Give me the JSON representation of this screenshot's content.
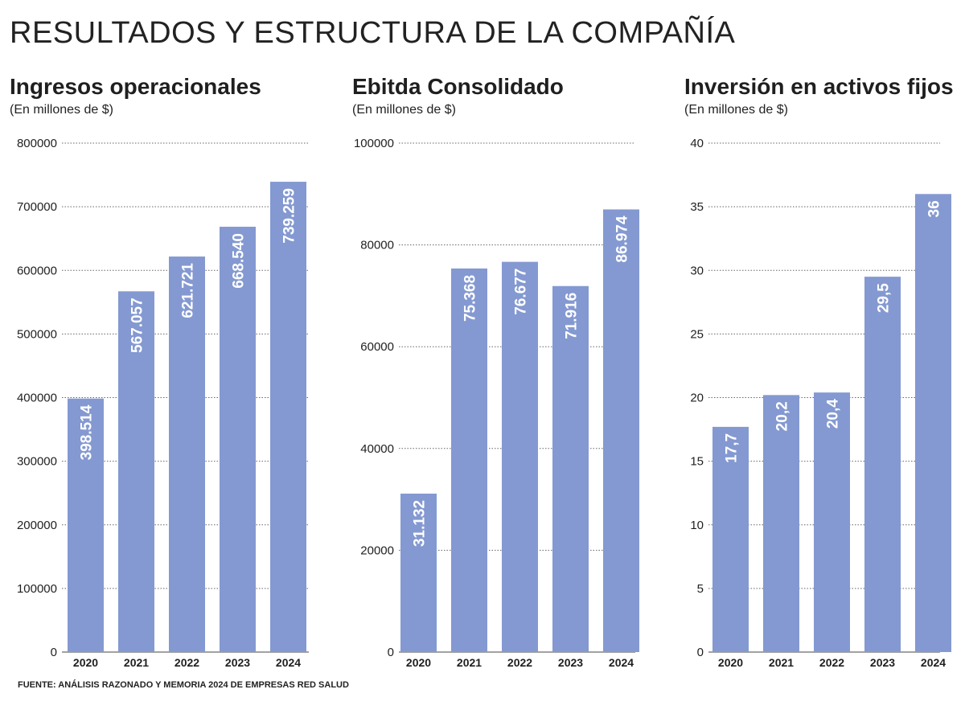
{
  "page": {
    "title": "RESULTADOS Y ESTRUCTURA DE LA COMPAÑÍA",
    "source": "FUENTE: ANÁLISIS RAZONADO Y MEMORIA 2024 DE EMPRESAS RED SALUD"
  },
  "colors": {
    "bar": "#8499d1",
    "grid": "#666666",
    "text": "#1f1f1f"
  },
  "chart_data": [
    {
      "type": "bar",
      "title": "Ingresos operacionales",
      "subtitle": "(En millones de $)",
      "categories": [
        "2020",
        "2021",
        "2022",
        "2023",
        "2024"
      ],
      "values": [
        398514,
        567057,
        621721,
        668540,
        739259
      ],
      "value_labels": [
        "398.514",
        "567.057",
        "621.721",
        "668.540",
        "739.259"
      ],
      "ylim": [
        0,
        800000
      ],
      "yticks": [
        "0",
        "100000",
        "200000",
        "300000",
        "400000",
        "500000",
        "600000",
        "700000",
        "800000"
      ],
      "grid": true
    },
    {
      "type": "bar",
      "title": "Ebitda Consolidado",
      "subtitle": "(En millones de $)",
      "categories": [
        "2020",
        "2021",
        "2022",
        "2023",
        "2024"
      ],
      "values": [
        31132,
        75368,
        76677,
        71916,
        86974
      ],
      "value_labels": [
        "31.132",
        "75.368",
        "76.677",
        "71.916",
        "86.974"
      ],
      "ylim": [
        0,
        100000
      ],
      "yticks": [
        "0",
        "20000",
        "40000",
        "60000",
        "80000",
        "100000"
      ],
      "grid": true
    },
    {
      "type": "bar",
      "title": "Inversión en activos fijos",
      "subtitle": "(En millones de $)",
      "categories": [
        "2020",
        "2021",
        "2022",
        "2023",
        "2024"
      ],
      "values": [
        17.7,
        20.2,
        20.4,
        29.5,
        36
      ],
      "value_labels": [
        "17,7",
        "20,2",
        "20,4",
        "29,5",
        "36"
      ],
      "ylim": [
        0,
        40
      ],
      "yticks": [
        "0",
        "5",
        "10",
        "15",
        "20",
        "25",
        "30",
        "35",
        "40"
      ],
      "grid": true
    }
  ]
}
